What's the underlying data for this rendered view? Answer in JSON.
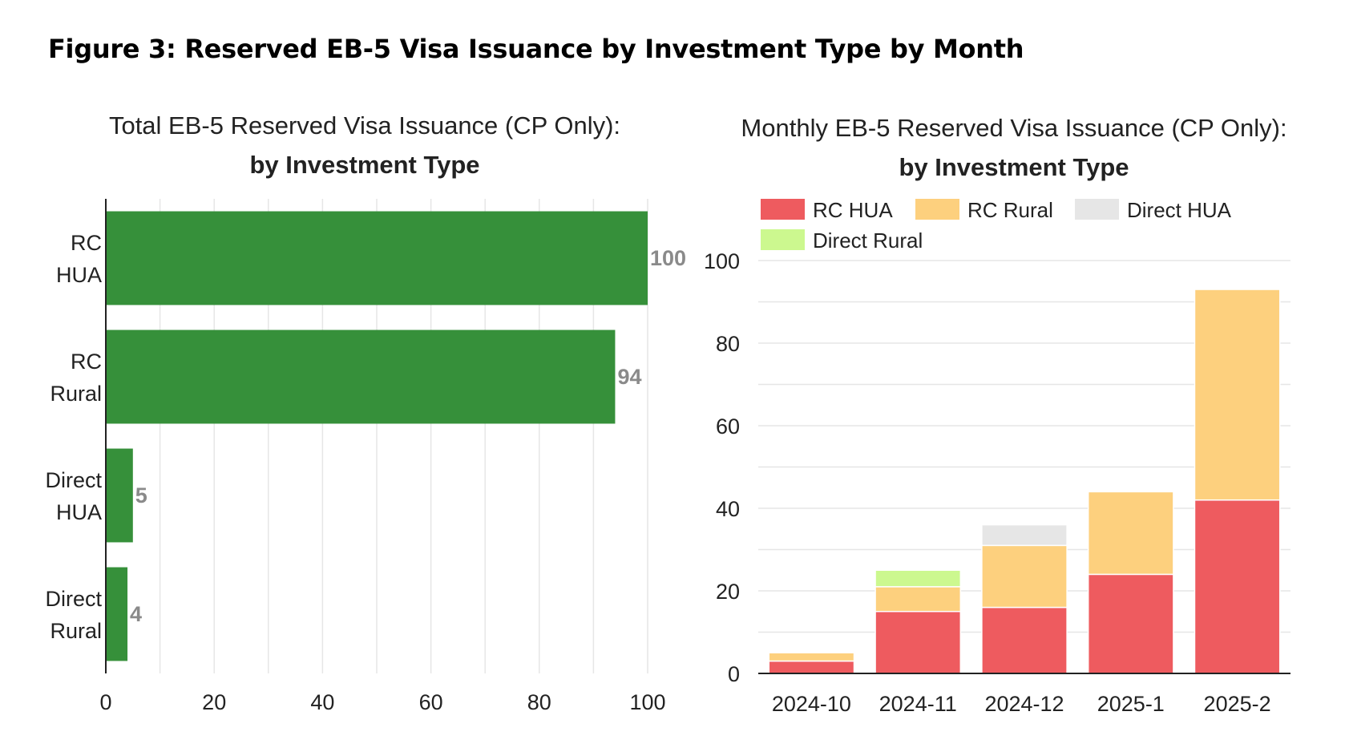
{
  "figure": {
    "title": "Figure 3: Reserved EB-5 Visa Issuance by Investment Type by Month"
  },
  "colors": {
    "bar_green": "#36903a",
    "rc_hua": "#ee5b5f",
    "rc_rural": "#fdd07e",
    "direct_hua": "#e6e6e6",
    "direct_rural": "#ccf88f",
    "grid": "#e6e6e6",
    "axis": "#222222"
  },
  "chart_data": [
    {
      "type": "bar",
      "orientation": "horizontal",
      "title": "Total EB-5 Reserved Visa Issuance (CP Only):",
      "subtitle": "by Investment Type",
      "categories": [
        [
          "RC",
          "HUA"
        ],
        [
          "RC",
          "Rural"
        ],
        [
          "Direct",
          "HUA"
        ],
        [
          "Direct",
          "Rural"
        ]
      ],
      "values": [
        100,
        94,
        5,
        4
      ],
      "xlim": [
        0,
        100
      ],
      "xticks": [
        0,
        20,
        40,
        60,
        80,
        100
      ],
      "grid": true
    },
    {
      "type": "bar",
      "stacked": true,
      "title": "Monthly EB-5 Reserved Visa Issuance (CP Only):",
      "subtitle": "by Investment Type",
      "categories": [
        "2024-10",
        "2024-11",
        "2024-12",
        "2025-1",
        "2025-2"
      ],
      "series": [
        {
          "name": "RC HUA",
          "key": "rc_hua",
          "values": [
            3,
            15,
            16,
            24,
            42
          ]
        },
        {
          "name": "RC Rural",
          "key": "rc_rural",
          "values": [
            2,
            6,
            15,
            20,
            51
          ]
        },
        {
          "name": "Direct HUA",
          "key": "direct_hua",
          "values": [
            0,
            0,
            5,
            0,
            0
          ]
        },
        {
          "name": "Direct Rural",
          "key": "direct_rural",
          "values": [
            0,
            4,
            0,
            0,
            0
          ]
        }
      ],
      "ylim": [
        0,
        100
      ],
      "yticks": [
        0,
        20,
        40,
        60,
        80,
        100
      ],
      "legend": "top",
      "grid": true
    }
  ]
}
